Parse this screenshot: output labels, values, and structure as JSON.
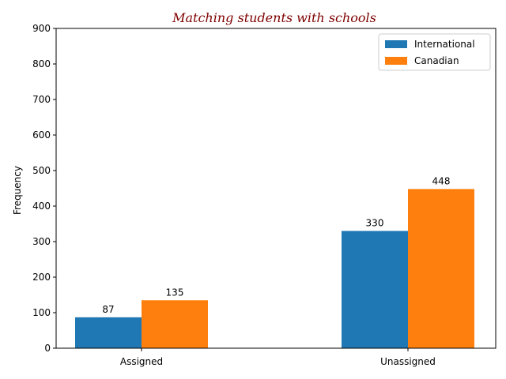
{
  "chart_data": {
    "type": "bar",
    "title": "Matching students with schools",
    "xlabel": "",
    "ylabel": "Frequency",
    "categories": [
      "Assigned",
      "Unassigned"
    ],
    "series": [
      {
        "name": "International",
        "values": [
          87,
          330
        ],
        "color": "#1f77b4"
      },
      {
        "name": "Canadian",
        "values": [
          135,
          448
        ],
        "color": "#ff7f0e"
      }
    ],
    "ylim": [
      0,
      900
    ],
    "yticks": [
      0,
      100,
      200,
      300,
      400,
      500,
      600,
      700,
      800,
      900
    ],
    "grid": false,
    "legend_position": "top-right"
  }
}
